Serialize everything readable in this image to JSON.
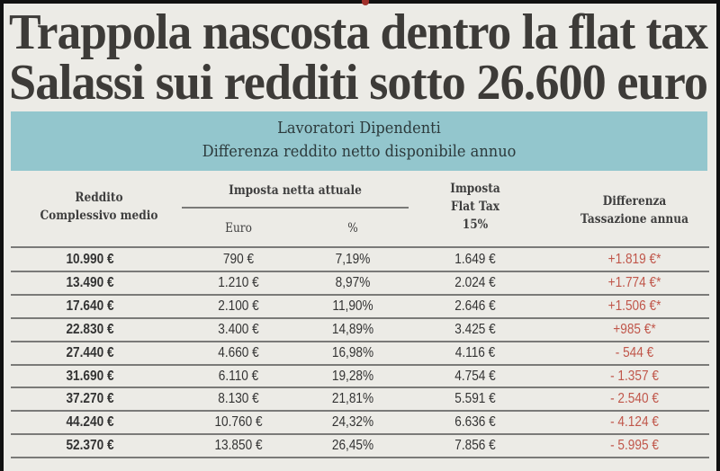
{
  "headline": {
    "line1": "Trappola nascosta dentro la flat tax",
    "line2": "Salassi sui redditi sotto 26.600 euro"
  },
  "banner": {
    "title": "Lavoratori Dipendenti",
    "subtitle": "Differenza reddito netto disponibile annuo"
  },
  "table": {
    "headers": {
      "reddito_line1": "Reddito",
      "reddito_line2": "Complessivo medio",
      "imposta_attuale": "Imposta netta attuale",
      "euro": "Euro",
      "percent": "%",
      "flat_line1": "Imposta",
      "flat_line2": "Flat Tax",
      "flat_line3": "15%",
      "diff_line1": "Differenza",
      "diff_line2": "Tassazione annua"
    },
    "rows": [
      [
        "10.990 €",
        "790 €",
        "7,19%",
        "1.649 €",
        "+1.819 €*"
      ],
      [
        "13.490 €",
        "1.210 €",
        "8,97%",
        "2.024 €",
        "+1.774 €*"
      ],
      [
        "17.640 €",
        "2.100 €",
        "11,90%",
        "2.646 €",
        "+1.506 €*"
      ],
      [
        "22.830 €",
        "3.400 €",
        "14,89%",
        "3.425 €",
        "+985 €*"
      ],
      [
        "27.440 €",
        "4.660 €",
        "16,98%",
        "4.116 €",
        "- 544 €"
      ],
      [
        "31.690 €",
        "6.110 €",
        "19,28%",
        "4.754 €",
        "- 1.357 €"
      ],
      [
        "37.270 €",
        "8.130 €",
        "21,81%",
        "5.591 €",
        "- 2.540 €"
      ],
      [
        "44.240 €",
        "10.760 €",
        "24,32%",
        "6.636 €",
        "- 4.124 €"
      ],
      [
        "52.370 €",
        "13.850 €",
        "26,45%",
        "7.856 €",
        "- 5.995 €"
      ]
    ]
  }
}
